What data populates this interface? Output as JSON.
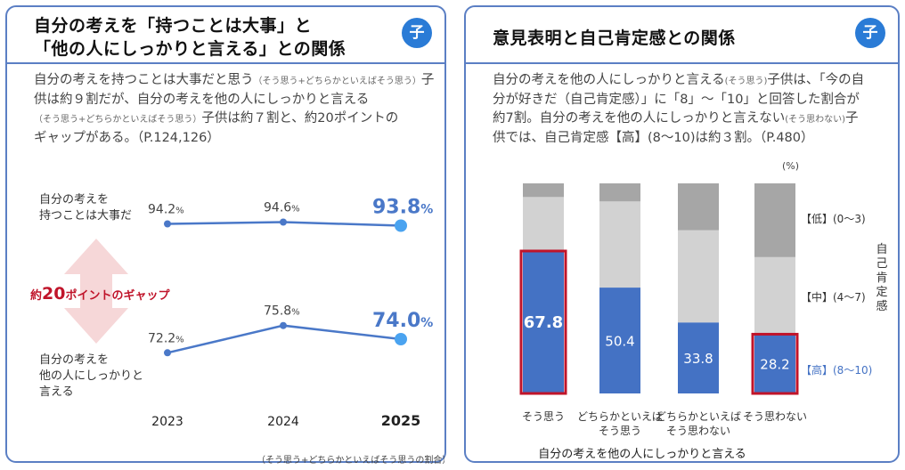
{
  "left": {
    "title_line1": "自分の考えを「持つことは大事」と",
    "title_line2": "「他の人にしっかりと言える」との関係",
    "badge": "子",
    "desc": {
      "part1": "自分の考えを持つことは大事だと思う",
      "note1": "（そう思う+どちらかといえばそう思う）",
      "part2": "子供は約９割だが、自分の考えを他の人にしっかりと言える",
      "note2": "（そう思う+どちらかといえばそう思う）",
      "part3": "子供は約７割と、約20ポイントの",
      "part4": "ギャップがある。（P.124,126）"
    },
    "footnote": "（そう思う+どちらかといえばそう思うの割合）"
  },
  "right": {
    "title": "意見表明と自己肯定感との関係",
    "badge": "子",
    "desc": {
      "line1a": "自分の考えを他の人にしっかりと言える",
      "line1note": "(そう思う)",
      "line1b": "子供は、「今の自",
      "line2": "分が好きだ（自己肯定感）」に「8」〜「10」と回答した割合が",
      "line3a": "約7割。自分の考えを他の人にしっかりと言えない",
      "line3note": "(そう思わない)",
      "line3b": "子",
      "line4": "供では、自己肯定感【高】(8〜10)は約３割。（P.480）"
    }
  },
  "chart_data": [
    {
      "type": "line",
      "x": [
        "2023",
        "2024",
        "2025"
      ],
      "series": [
        {
          "name": "自分の考えを 持つことは大事だ",
          "label_lines": [
            "自分の考えを",
            "持つことは大事だ"
          ],
          "values": [
            94.2,
            94.6,
            93.8
          ],
          "display": [
            "94.2",
            "94.6",
            "93.8"
          ]
        },
        {
          "name": "自分の考えを 他の人にしっかりと 言える",
          "label_lines": [
            "自分の考えを",
            "他の人にしっかりと",
            "言える"
          ],
          "values": [
            72.2,
            75.8,
            74.0
          ],
          "display": [
            "72.2",
            "75.8",
            "74.0"
          ]
        }
      ],
      "unit": "%",
      "gap_label_prefix": "約",
      "gap_label_number": "20",
      "gap_label_suffix": "ポイントのギャップ",
      "footnote": "（そう思う+どちらかといえばそう思うの割合）",
      "colors": {
        "line": "#4a78c8",
        "highlight": "#4aa3f0",
        "gap": "#e89aa0"
      }
    },
    {
      "type": "bar",
      "stacked": true,
      "unit_label": "(%)",
      "categories": [
        {
          "name": "そう思う",
          "lines": [
            "そう思う"
          ]
        },
        {
          "name": "どちらかといえば そう思う",
          "lines": [
            "どちらかといえば",
            "そう思う"
          ]
        },
        {
          "name": "どちらかといえば そう思わない",
          "lines": [
            "どちらかといえば",
            "そう思わない"
          ]
        },
        {
          "name": "そう思わない",
          "lines": [
            "そう思わない"
          ]
        }
      ],
      "series": [
        {
          "name": "【高】(8〜10)",
          "values": [
            67.8,
            50.4,
            33.8,
            28.2
          ],
          "color": "#4472c4"
        },
        {
          "name": "【中】(4〜7)",
          "values": [
            25.7,
            41.0,
            43.9,
            36.7
          ],
          "color": "#d2d2d2"
        },
        {
          "name": "【低】(0〜3)",
          "values": [
            6.5,
            8.6,
            22.3,
            35.1
          ],
          "color": "#a6a6a6"
        }
      ],
      "ylim": [
        0,
        100
      ],
      "highlight": [
        0,
        3
      ],
      "highlight_color": "#c0142a",
      "xlabel": "自分の考えを他の人にしっかりと言える",
      "ylabel": "自己肯定感"
    }
  ]
}
